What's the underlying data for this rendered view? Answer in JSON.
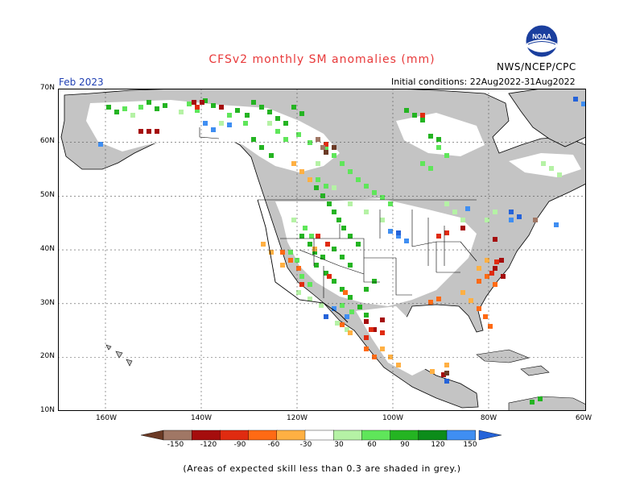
{
  "title": "CFSv2 monthly SM anomalies (mm)",
  "agency": "NWS/NCEP/CPC",
  "logo_text": "NOAA",
  "valid_month": "Feb 2023",
  "initial_conditions": "Initial conditions: 22Aug2022-31Aug2022",
  "lat_labels": [
    "70N",
    "60N",
    "50N",
    "40N",
    "30N",
    "20N",
    "10N"
  ],
  "lon_labels": [
    "160W",
    "140W",
    "120W",
    "100W",
    "80W",
    "60W"
  ],
  "colorbar": {
    "labels": [
      "-150",
      "-120",
      "-90",
      "-60",
      "-30",
      "30",
      "60",
      "90",
      "120",
      "150"
    ],
    "colors": [
      "#6b3a25",
      "#a07765",
      "#a50d0d",
      "#e02b10",
      "#ff6a14",
      "#ffb043",
      "#ffffff",
      "#b5f2a5",
      "#5fe65a",
      "#24b422",
      "#0c8c1a",
      "#3f8ef2",
      "#2563d9"
    ]
  },
  "colors": {
    "ocean": "#ffffff",
    "low_skill_grey": "#c4c4c4",
    "title": "#e8393a",
    "month": "#1f3fb3"
  },
  "footnote": "(Areas of expected skill less than 0.3 are shaded in grey.)"
}
